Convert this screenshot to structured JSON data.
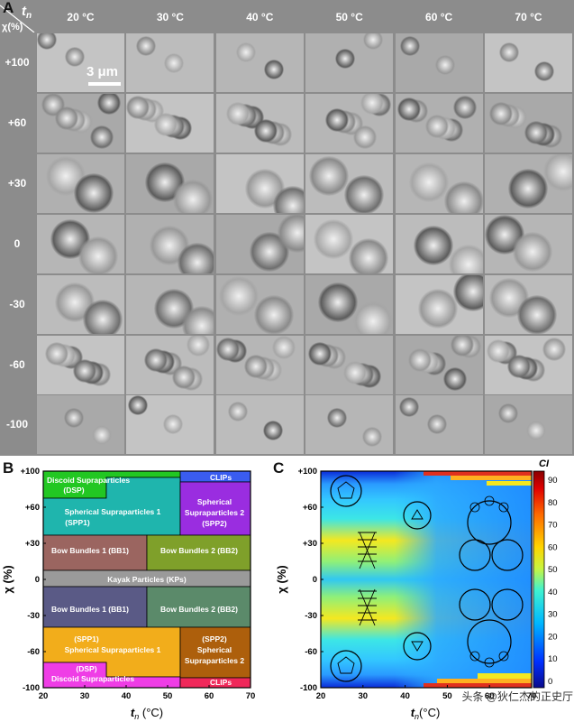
{
  "panel_a": {
    "letter": "A",
    "corner_tn": "t",
    "corner_tn_sub": "n",
    "corner_chi": "χ(%)",
    "columns": [
      "20 °C",
      "30 °C",
      "40 °C",
      "50 °C",
      "60 °C",
      "70 °C"
    ],
    "rows": [
      "+100",
      "+60",
      "+30",
      "0",
      "-30",
      "-60",
      "-100"
    ],
    "scale_bar": "3 μm"
  },
  "panel_b": {
    "letter": "B",
    "regions": {
      "clips_top": "CLIPs",
      "dsp_top": "Discoid Supraparticles",
      "dsp_top_abbr": "(DSP)",
      "spp1_top": "Spherical Supraparticles 1",
      "spp1_top_abbr": "(SPP1)",
      "spp2_top_1": "Spherical",
      "spp2_top_2": "Supraparticles 2",
      "spp2_top_abbr": "(SPP2)",
      "bb1_top": "Bow Bundles 1 (BB1)",
      "bb2_top": "Bow Bundles 2 (BB2)",
      "kps": "Kayak Particles (KPs)",
      "bb1_bot": "Bow Bundles 1 (BB1)",
      "bb2_bot": "Bow Bundles 2 (BB2)",
      "spp1_bot_abbr": "(SPP1)",
      "spp1_bot": "Spherical Supraparticles 1",
      "spp2_bot_abbr": "(SPP2)",
      "spp2_bot_1": "Spherical",
      "spp2_bot_2": "Supraparticles 2",
      "dsp_bot_abbr": "(DSP)",
      "dsp_bot": "Discoid Supraparticles",
      "clips_bot": "CLIPs"
    },
    "yticks": [
      "+100",
      "+60",
      "+30",
      "0",
      "-30",
      "-60",
      "-100"
    ],
    "xticks": [
      "20",
      "30",
      "40",
      "50",
      "60",
      "70"
    ],
    "ylabel": "χ (%)",
    "xlabel_t": "t",
    "xlabel_sub": "n",
    "xlabel_unit": " (°C)"
  },
  "panel_c": {
    "letter": "C",
    "yticks": [
      "+100",
      "+60",
      "+30",
      "0",
      "-30",
      "-60",
      "-100"
    ],
    "xticks": [
      "20",
      "30",
      "40",
      "50",
      "60",
      "70"
    ],
    "ylabel": "χ (%)",
    "xlabel_t": "t",
    "xlabel_sub": "n",
    "xlabel_unit": "(°C)",
    "colorbar_title": "CI",
    "colorbar_ticks": [
      "90",
      "80",
      "70",
      "60",
      "50",
      "40",
      "30",
      "20",
      "10",
      "0"
    ]
  },
  "watermark": "头条 @狄仁杰的正史厅",
  "colors": {
    "clips": "#3a5cf0",
    "dsp": "#22c722",
    "spp1": "#1fb5ad",
    "spp2": "#9a2de0",
    "bb1": "#9b6560",
    "bb2": "#7fa02a",
    "kps": "#9a9a9a",
    "bb1_bot": "#5a5a86",
    "bb2_bot": "#5b8a6a",
    "spp1_bot": "#f2ad1b",
    "spp2_bot": "#ad5f0c",
    "dsp_bot": "#ef3de6",
    "clips_bot": "#f0285a"
  }
}
